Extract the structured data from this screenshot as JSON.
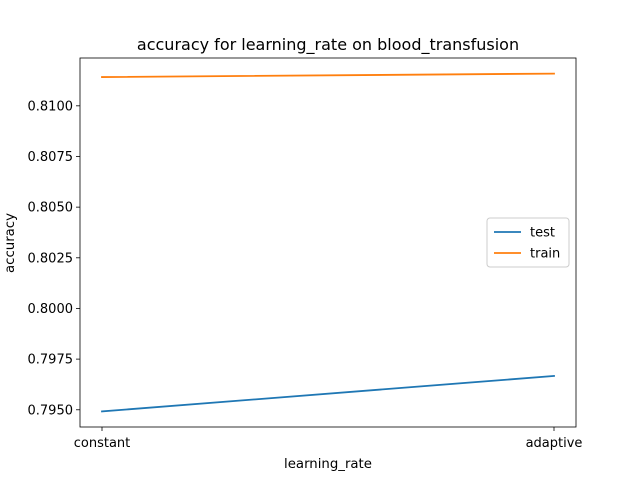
{
  "chart_data": {
    "type": "line",
    "title": "accuracy for learning_rate on  blood_transfusion",
    "xlabel": "learning_rate",
    "ylabel": "accuracy",
    "categories": [
      "constant",
      "adaptive"
    ],
    "series": [
      {
        "name": "test",
        "values": [
          0.79492,
          0.79667
        ],
        "color": "#1f77b4"
      },
      {
        "name": "train",
        "values": [
          0.81142,
          0.81159
        ],
        "color": "#ff7f0e"
      }
    ],
    "ylim": [
      0.79415,
      0.81236
    ],
    "yticks": [
      0.795,
      0.7975,
      0.8,
      0.8025,
      0.805,
      0.8075,
      0.81
    ],
    "ytick_labels": [
      "0.7950",
      "0.7975",
      "0.8000",
      "0.8025",
      "0.8050",
      "0.8075",
      "0.8100"
    ],
    "grid": false,
    "legend_position": "center-right"
  }
}
